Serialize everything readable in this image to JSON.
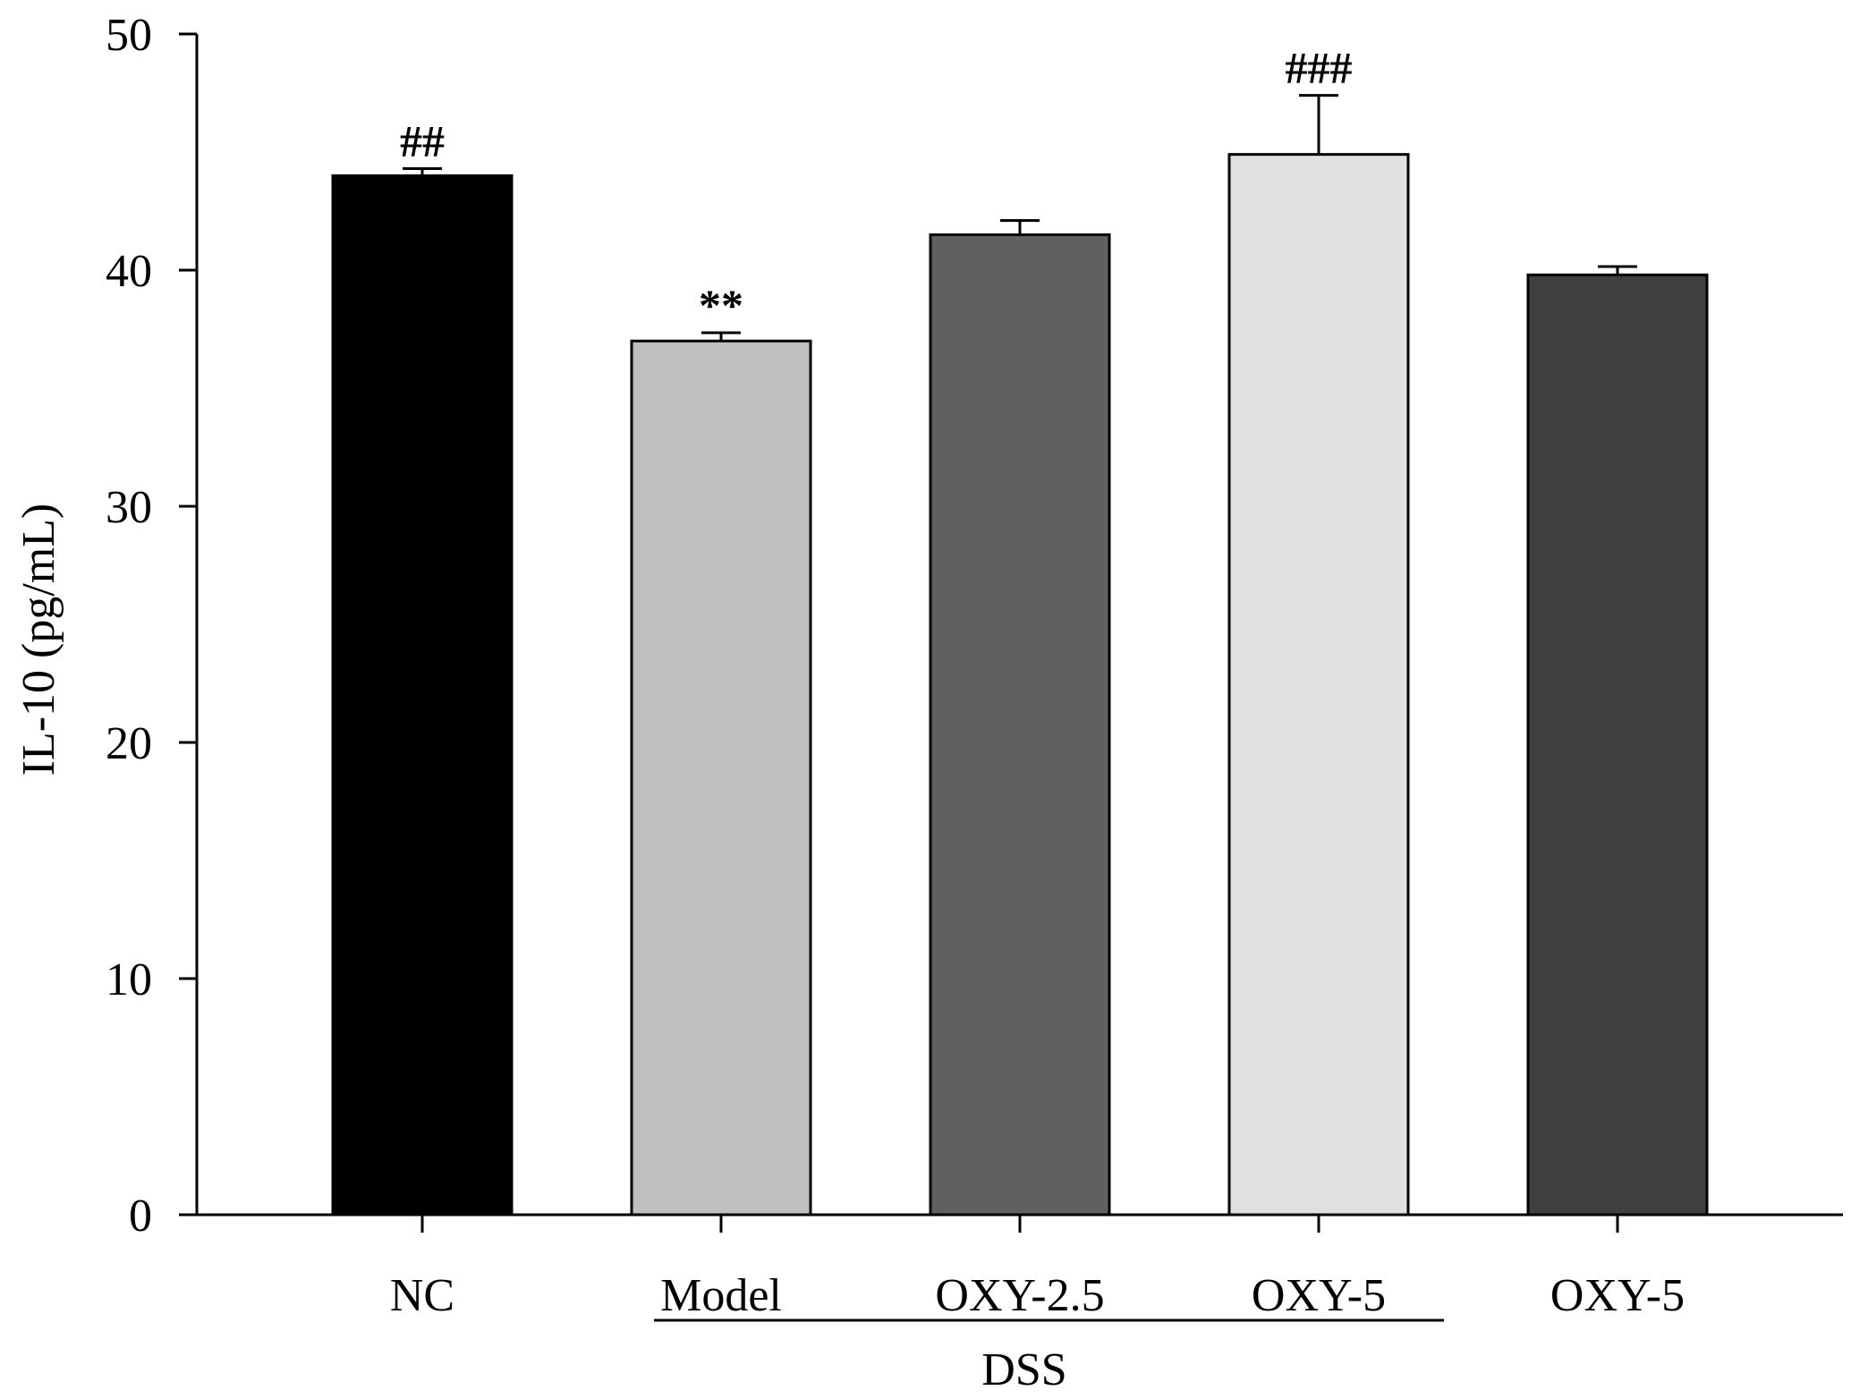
{
  "chart_data": {
    "type": "bar",
    "title": "",
    "xlabel": "",
    "ylabel": "IL-10 (pg/mL)",
    "ylim": [
      0,
      50
    ],
    "yticks": [
      0,
      10,
      20,
      30,
      40,
      50
    ],
    "grid": false,
    "categories": [
      "NC",
      "Model",
      "OXY-2.5",
      "OXY-5",
      "OXY-5"
    ],
    "values": [
      44.0,
      37.0,
      41.5,
      44.9,
      39.8
    ],
    "errors": [
      0.3,
      0.35,
      0.6,
      2.5,
      0.35
    ],
    "colors": [
      "#000000",
      "#c0c0c0",
      "#606060",
      "#e0e0e0",
      "#404040"
    ],
    "annotations": [
      "##",
      "**",
      "",
      "###",
      ""
    ],
    "group_label": "DSS",
    "group_span": [
      1,
      3
    ]
  }
}
